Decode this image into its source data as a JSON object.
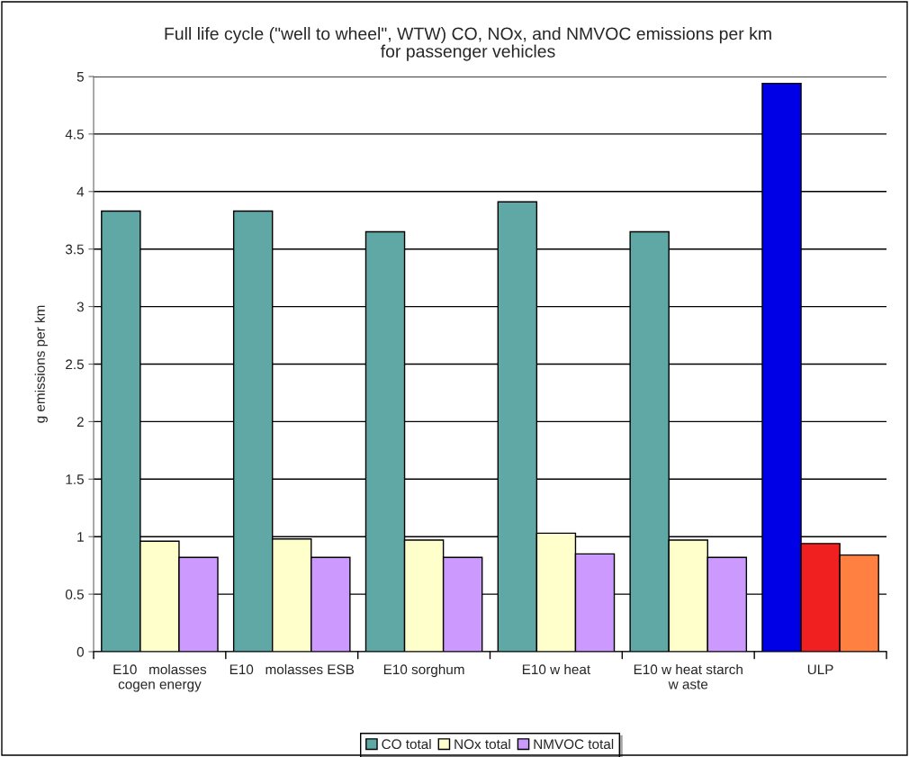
{
  "chart_data": {
    "type": "bar",
    "title": "Full life cycle (\"well to wheel\", WTW) CO, NOx, and NMVOC emissions per km\nfor passenger vehicles",
    "ylabel": "g emissions per km",
    "categories": [
      "E10   molasses\ncogen energy",
      "E10   molasses ESB",
      "E10 sorghum",
      "E10 w heat",
      "E10 w heat starch\nw aste",
      "ULP"
    ],
    "series": [
      {
        "name": "CO total",
        "color": "#5fa8a6",
        "colors": [
          "#5fa8a6",
          "#5fa8a6",
          "#5fa8a6",
          "#5fa8a6",
          "#5fa8a6",
          "#0000e6"
        ],
        "values": [
          3.83,
          3.83,
          3.65,
          3.91,
          3.65,
          4.94
        ]
      },
      {
        "name": "NOx total",
        "color": "#ffffcc",
        "colors": [
          "#ffffcc",
          "#ffffcc",
          "#ffffcc",
          "#ffffcc",
          "#ffffcc",
          "#f02020"
        ],
        "values": [
          0.96,
          0.98,
          0.97,
          1.03,
          0.97,
          0.94
        ]
      },
      {
        "name": "NMVOC total",
        "color": "#cc99ff",
        "colors": [
          "#cc99ff",
          "#cc99ff",
          "#cc99ff",
          "#cc99ff",
          "#cc99ff",
          "#ff8040"
        ],
        "values": [
          0.82,
          0.82,
          0.82,
          0.85,
          0.82,
          0.84
        ]
      }
    ],
    "ylim": [
      0,
      5
    ],
    "yticks": [
      0,
      0.5,
      1,
      1.5,
      2,
      2.5,
      3,
      3.5,
      4,
      4.5,
      5
    ],
    "grid": "y",
    "legend": "bottom"
  }
}
